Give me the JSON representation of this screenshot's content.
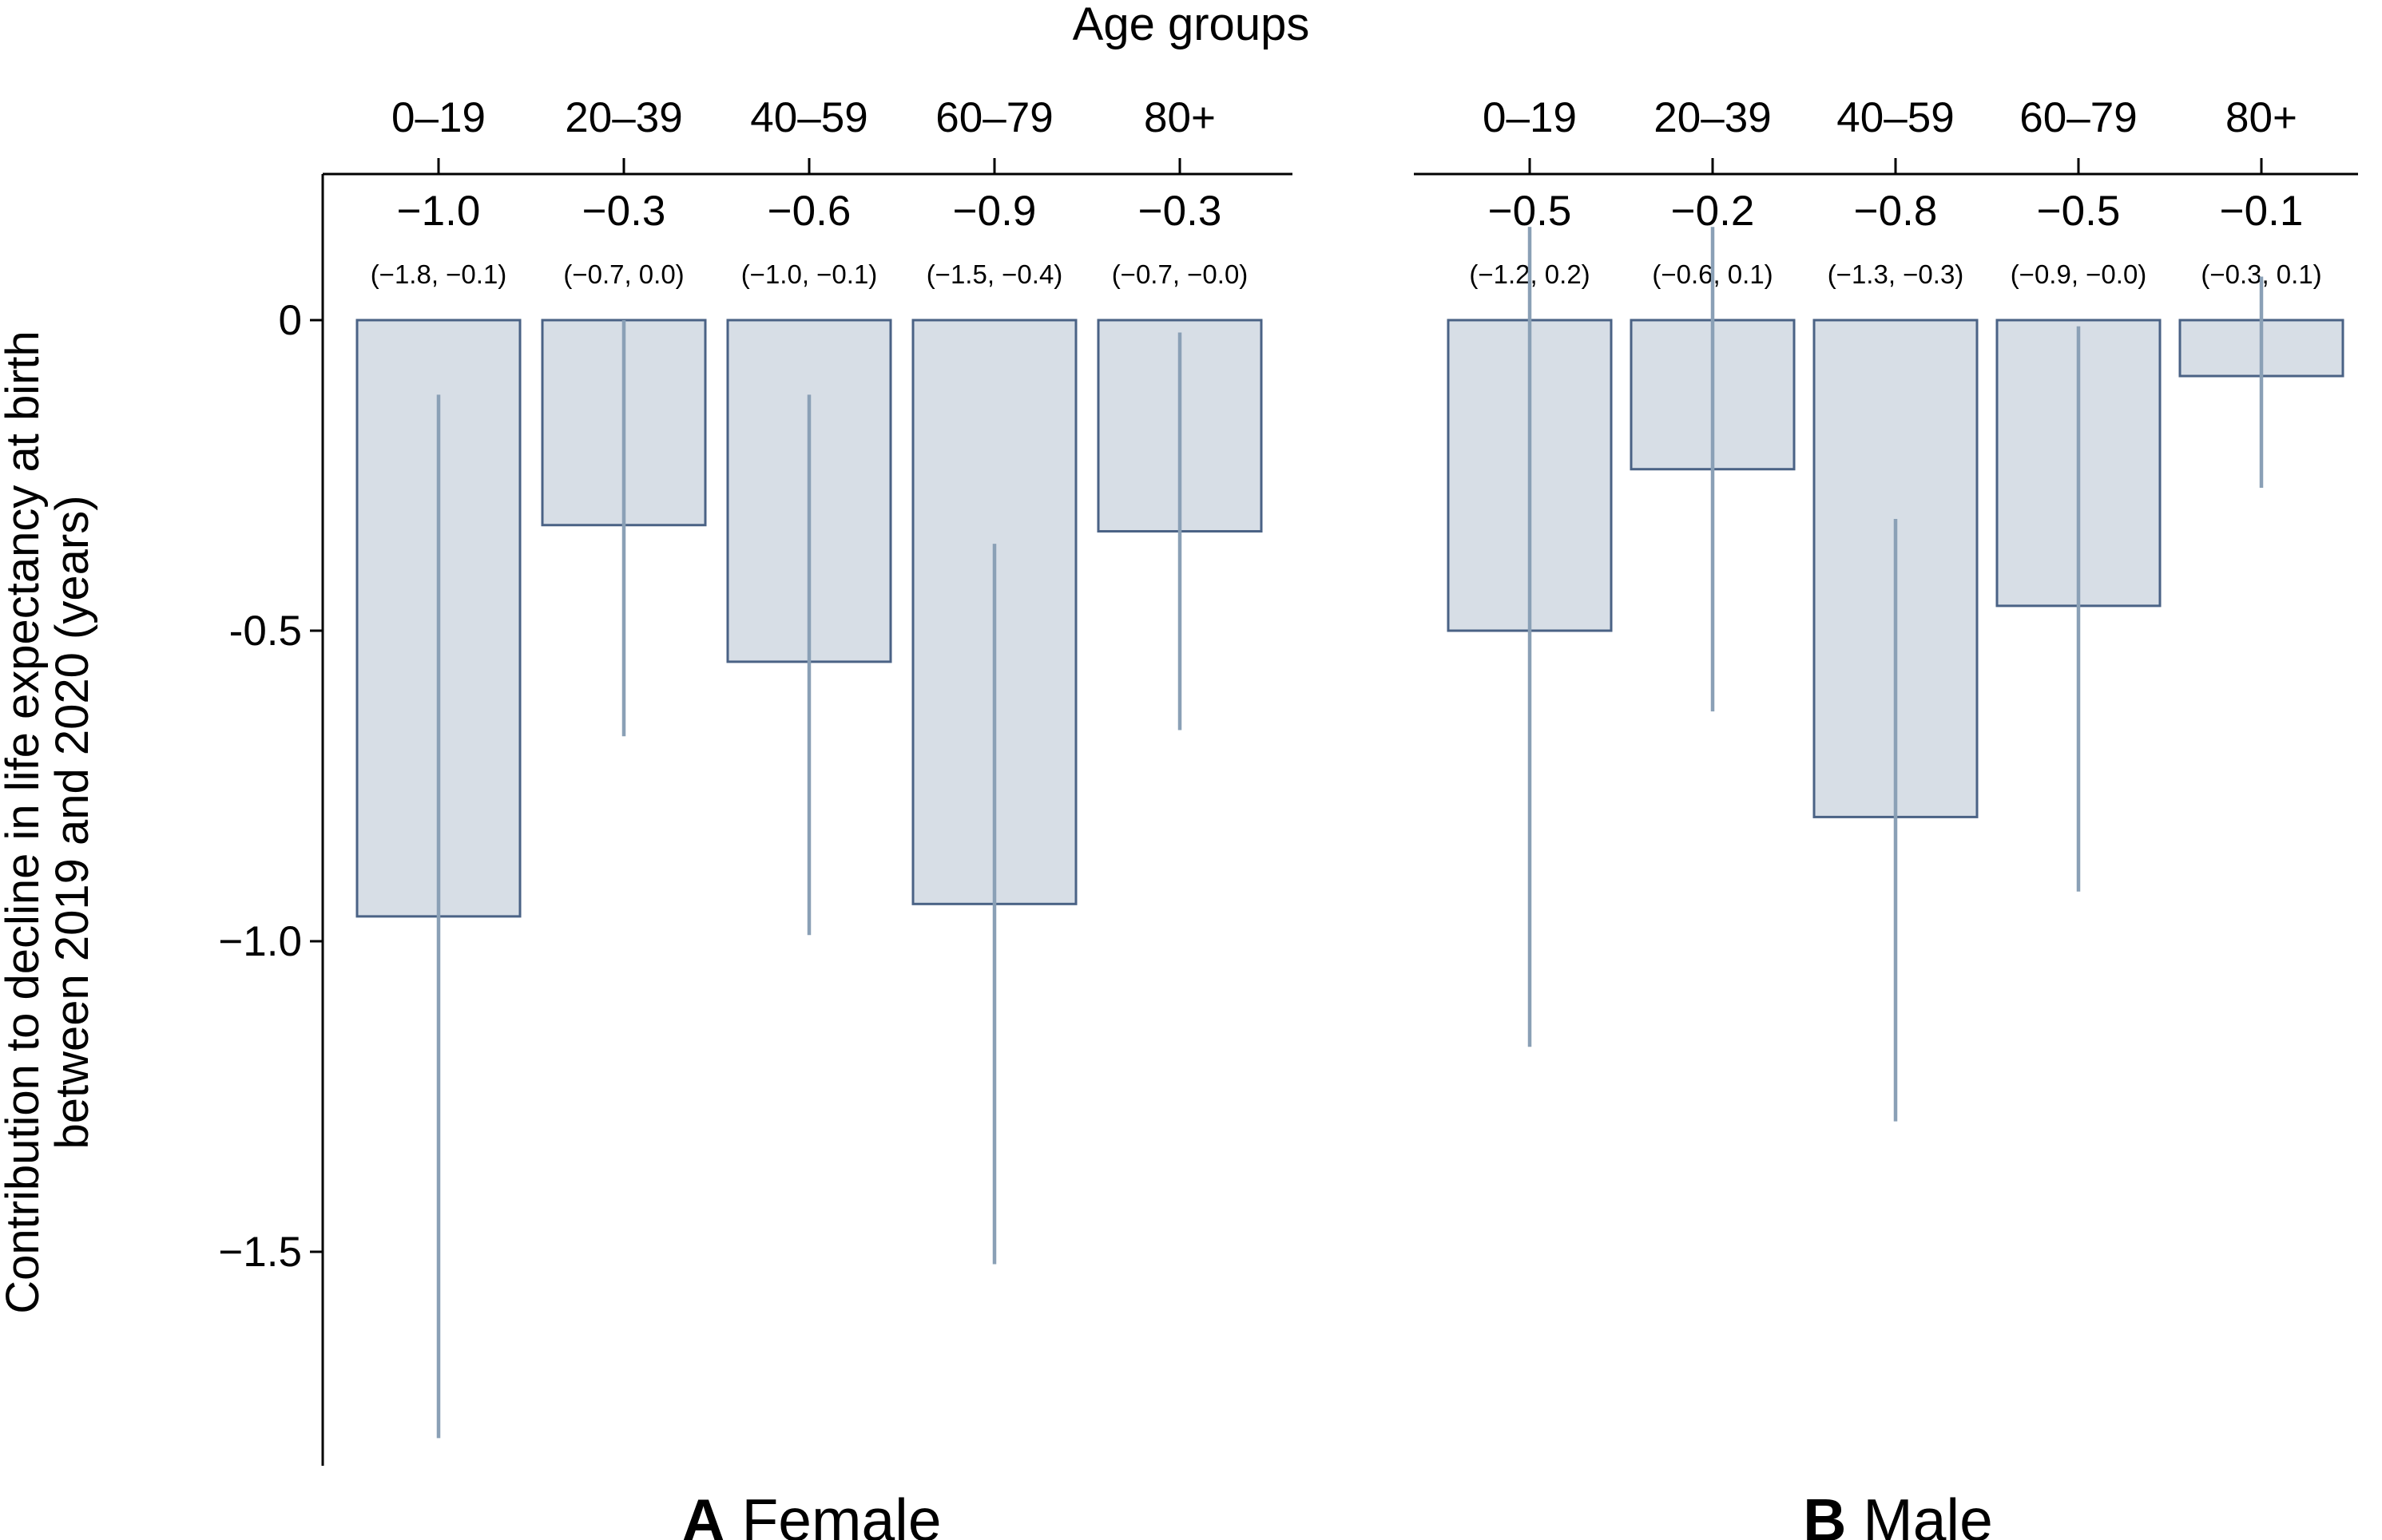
{
  "chart_data": {
    "type": "bar",
    "title": "Age groups",
    "ylabel_lines": [
      "Contribution to decline in life expectancy at birth",
      "between 2019 and 2020 (years)"
    ],
    "ylim": [
      -1.85,
      0.25
    ],
    "yticks": [
      0,
      -0.5,
      -1.0,
      -1.5
    ],
    "ytick_labels": [
      "0",
      "-0.5",
      "−1.0",
      "−1.5"
    ],
    "categories": [
      "0–19",
      "20–39",
      "40–59",
      "60–79",
      "80+"
    ],
    "panels": [
      {
        "letter": "A",
        "name": "Female",
        "values": [
          -0.96,
          -0.33,
          -0.55,
          -0.94,
          -0.34
        ],
        "ci_low": [
          -1.8,
          -0.67,
          -0.99,
          -1.52,
          -0.66
        ],
        "ci_high": [
          -0.12,
          0.0,
          -0.12,
          -0.36,
          -0.02
        ],
        "value_labels": [
          "−1.0",
          "−0.3",
          "−0.6",
          "−0.9",
          "−0.3"
        ],
        "ci_labels": [
          "(−1.8, −0.1)",
          "(−0.7, 0.0)",
          "(−1.0, −0.1)",
          "(−1.5, −0.4)",
          "(−0.7, −0.0)"
        ]
      },
      {
        "letter": "B",
        "name": "Male",
        "values": [
          -0.5,
          -0.24,
          -0.8,
          -0.46,
          -0.09
        ],
        "ci_low": [
          -1.17,
          -0.63,
          -1.29,
          -0.92,
          -0.27
        ],
        "ci_high": [
          0.15,
          0.15,
          -0.32,
          -0.01,
          0.07
        ],
        "value_labels": [
          "−0.5",
          "−0.2",
          "−0.8",
          "−0.5",
          "−0.1"
        ],
        "ci_labels": [
          "(−1.2, 0.2)",
          "(−0.6, 0.1)",
          "(−1.3, −0.3)",
          "(−0.9, −0.0)",
          "(−0.3, 0.1)"
        ]
      }
    ]
  }
}
